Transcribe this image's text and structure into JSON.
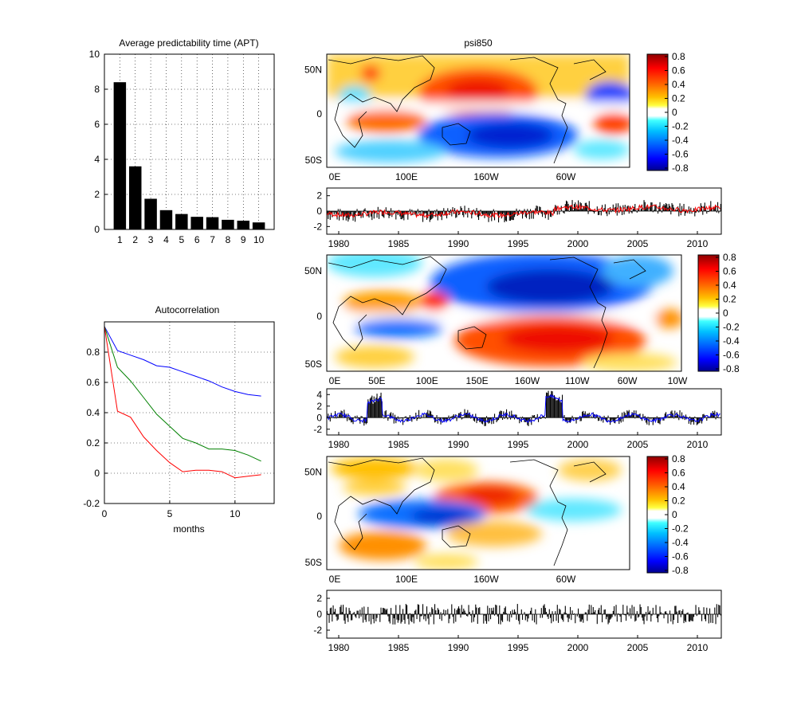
{
  "figure_title": "psi850",
  "chart_data": [
    {
      "id": "apt",
      "type": "bar",
      "title": "Average predictability time (APT)",
      "categories": [
        "1",
        "2",
        "3",
        "4",
        "5",
        "6",
        "7",
        "8",
        "9",
        "10"
      ],
      "values": [
        8.4,
        3.6,
        1.75,
        1.1,
        0.88,
        0.72,
        0.7,
        0.55,
        0.5,
        0.4
      ],
      "ylim": [
        0,
        10
      ],
      "yticks": [
        0,
        2,
        4,
        6,
        8,
        10
      ],
      "grid": true,
      "bar_color": "#000000"
    },
    {
      "id": "autocorr",
      "type": "line",
      "title": "Autocorrelation",
      "xlabel": "months",
      "xlim": [
        0,
        13
      ],
      "ylim": [
        -0.2,
        1.0
      ],
      "xticks": [
        0,
        5,
        10
      ],
      "yticks": [
        -0.2,
        0,
        0.2,
        0.4,
        0.6,
        0.8
      ],
      "grid": true,
      "series": [
        {
          "color": "#0000ff",
          "x": [
            0,
            1,
            2,
            3,
            4,
            5,
            6,
            7,
            8,
            9,
            10,
            11,
            12
          ],
          "values": [
            0.97,
            0.81,
            0.78,
            0.75,
            0.71,
            0.7,
            0.67,
            0.64,
            0.61,
            0.57,
            0.54,
            0.52,
            0.51
          ]
        },
        {
          "color": "#008000",
          "x": [
            0,
            1,
            2,
            3,
            4,
            5,
            6,
            7,
            8,
            9,
            10,
            11,
            12
          ],
          "values": [
            0.97,
            0.7,
            0.61,
            0.5,
            0.39,
            0.31,
            0.23,
            0.2,
            0.16,
            0.16,
            0.15,
            0.12,
            0.08
          ]
        },
        {
          "color": "#ff0000",
          "x": [
            0,
            1,
            2,
            3,
            4,
            5,
            6,
            7,
            8,
            9,
            10,
            11,
            12
          ],
          "values": [
            0.97,
            0.41,
            0.37,
            0.24,
            0.15,
            0.07,
            0.01,
            0.02,
            0.02,
            0.01,
            -0.03,
            -0.02,
            -0.01
          ]
        }
      ]
    },
    {
      "id": "maps",
      "type": "heatmap",
      "colorbar_ticks": [
        "0.8",
        "0.6",
        "0.4",
        "0.2",
        "0",
        "-0.2",
        "-0.4",
        "-0.6",
        "-0.8"
      ],
      "colormap": [
        "#00008f",
        "#0000ff",
        "#0060ff",
        "#00c0ff",
        "#40ffff",
        "#ffffff",
        "#ffff40",
        "#ffc000",
        "#ff6000",
        "#ff0000",
        "#8f0000"
      ],
      "lat_ticks": [
        "50N",
        "0",
        "50S"
      ],
      "panels": [
        {
          "lon_ticks": [
            "0E",
            "100E",
            "160W",
            "60W"
          ]
        },
        {
          "lon_ticks": [
            "0E",
            "50E",
            "100E",
            "150E",
            "160W",
            "110W",
            "60W",
            "10W"
          ]
        },
        {
          "lon_ticks": [
            "0E",
            "100E",
            "160W",
            "60W"
          ]
        }
      ]
    },
    {
      "id": "timeseries",
      "type": "bar",
      "x_ticks": [
        "1980",
        "1985",
        "1990",
        "1995",
        "2000",
        "2005",
        "2010"
      ],
      "xlim": [
        1979,
        2012
      ],
      "panels": [
        {
          "yticks": [
            "2",
            "0",
            "-2"
          ],
          "ylim": [
            -3,
            3
          ],
          "overlay_color": "#ff0000"
        },
        {
          "yticks": [
            "4",
            "2",
            "0",
            "-2"
          ],
          "ylim": [
            -3,
            5
          ],
          "overlay_color": "#0000ff"
        },
        {
          "yticks": [
            "2",
            "0",
            "-2"
          ],
          "ylim": [
            -3,
            3
          ],
          "overlay_color": ""
        }
      ]
    }
  ]
}
